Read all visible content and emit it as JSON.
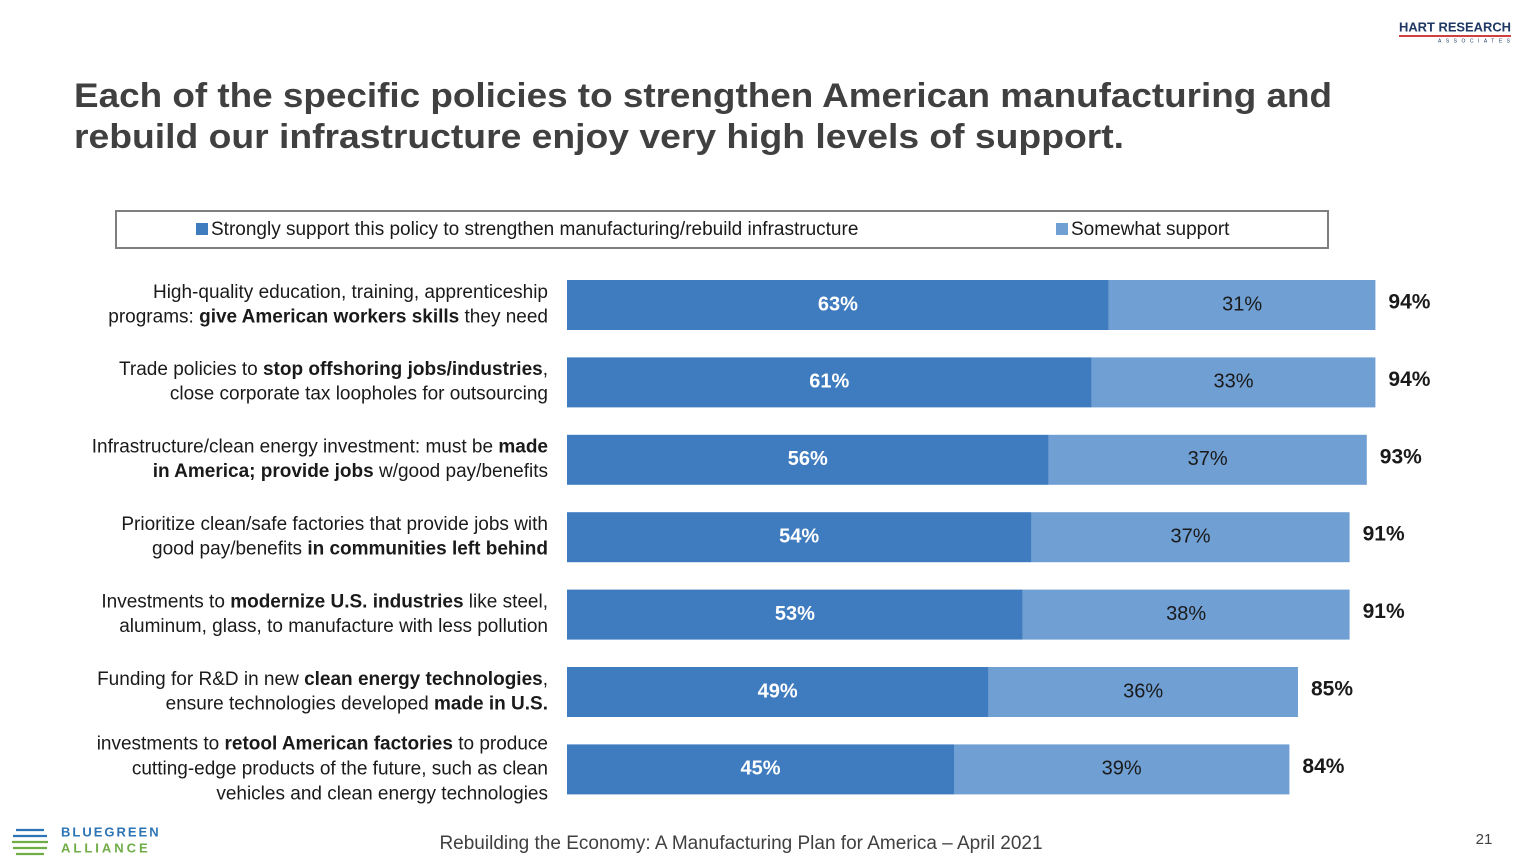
{
  "chart_data": {
    "type": "stacked-bar-horizontal",
    "title": [
      "Each of the specific policies to strengthen American manufacturing and",
      "rebuild our infrastructure enjoy very high levels of support."
    ],
    "categories": [
      [
        [
          {
            "text": "High-quality education, training, apprenticeship",
            "bold": false
          }
        ],
        [
          {
            "text": "programs: ",
            "bold": false
          },
          {
            "text": "give American workers skills",
            "bold": true
          },
          {
            "text": " they need",
            "bold": false
          }
        ]
      ],
      [
        [
          {
            "text": "Trade policies to ",
            "bold": false
          },
          {
            "text": "stop offshoring jobs/industries",
            "bold": true
          },
          {
            "text": ",",
            "bold": false
          }
        ],
        [
          {
            "text": "close corporate tax loopholes for outsourcing",
            "bold": false
          }
        ]
      ],
      [
        [
          {
            "text": "Infrastructure/clean energy investment: must be ",
            "bold": false
          },
          {
            "text": "made",
            "bold": true
          }
        ],
        [
          {
            "text": "in America; provide jobs",
            "bold": true
          },
          {
            "text": " w/good pay/benefits",
            "bold": false
          }
        ]
      ],
      [
        [
          {
            "text": "Prioritize clean/safe factories that provide jobs with",
            "bold": false
          }
        ],
        [
          {
            "text": "good pay/benefits ",
            "bold": false
          },
          {
            "text": "in communities left behind",
            "bold": true
          }
        ]
      ],
      [
        [
          {
            "text": "Investments to ",
            "bold": false
          },
          {
            "text": "modernize U.S. industries",
            "bold": true
          },
          {
            "text": " like steel,",
            "bold": false
          }
        ],
        [
          {
            "text": "aluminum, glass, to manufacture with less pollution",
            "bold": false
          }
        ]
      ],
      [
        [
          {
            "text": "Funding for R&D in new ",
            "bold": false
          },
          {
            "text": "clean energy technologies",
            "bold": true
          },
          {
            "text": ",",
            "bold": false
          }
        ],
        [
          {
            "text": "ensure technologies developed ",
            "bold": false
          },
          {
            "text": "made in U.S.",
            "bold": true
          }
        ]
      ],
      [
        [
          {
            "text": "investments to ",
            "bold": false
          },
          {
            "text": "retool American factories",
            "bold": true
          },
          {
            "text": " to produce",
            "bold": false
          }
        ],
        [
          {
            "text": "cutting-edge products of the future, such as clean",
            "bold": false
          }
        ],
        [
          {
            "text": "vehicles and clean energy technologies",
            "bold": false
          }
        ]
      ]
    ],
    "series": [
      {
        "name": "Strongly support this policy to strengthen manufacturing/rebuild infrastructure",
        "color": "#3e7bbf",
        "label_color": "#ffffff",
        "label_bold": true,
        "values": [
          63,
          61,
          56,
          54,
          53,
          49,
          45
        ],
        "value_labels": [
          "63%",
          "61%",
          "56%",
          "54%",
          "53%",
          "49%",
          "45%"
        ]
      },
      {
        "name": "Somewhat support",
        "color": "#6f9fd3",
        "label_color": "#1a1a1a",
        "label_bold": false,
        "values": [
          31,
          33,
          37,
          37,
          38,
          36,
          39
        ],
        "value_labels": [
          "31%",
          "33%",
          "37%",
          "37%",
          "38%",
          "36%",
          "39%"
        ]
      }
    ],
    "totals": {
      "values": [
        94,
        94,
        93,
        91,
        91,
        85,
        84
      ],
      "value_labels": [
        "94%",
        "94%",
        "93%",
        "91%",
        "91%",
        "85%",
        "84%"
      ]
    },
    "xlim": [
      0,
      100
    ],
    "legend": "top"
  },
  "logo_top": {
    "name": "HART RESEARCH",
    "sub": "ASSOCIATES"
  },
  "logo_bottom": {
    "name": "BLUEGREEN",
    "sub": "ALLIANCE"
  },
  "footer": "Rebuilding the Economy: A Manufacturing Plan for America – April 2021",
  "page_number": "21"
}
